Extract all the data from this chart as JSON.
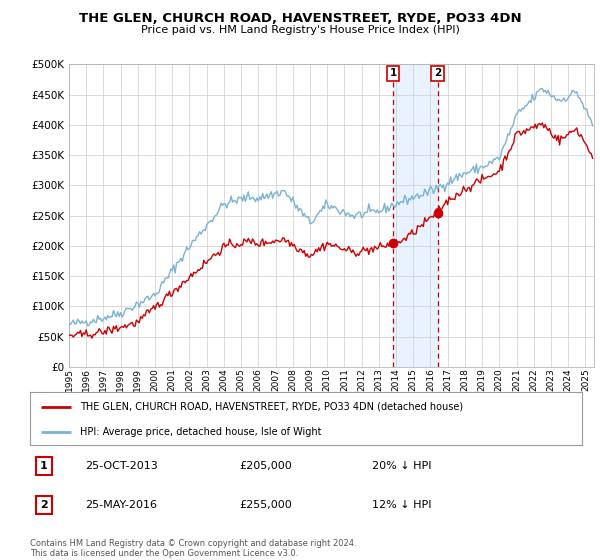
{
  "title": "THE GLEN, CHURCH ROAD, HAVENSTREET, RYDE, PO33 4DN",
  "subtitle": "Price paid vs. HM Land Registry's House Price Index (HPI)",
  "ytick_values": [
    0,
    50000,
    100000,
    150000,
    200000,
    250000,
    300000,
    350000,
    400000,
    450000,
    500000
  ],
  "xlim_start": 1995.0,
  "xlim_end": 2025.5,
  "ylim": [
    0,
    500000
  ],
  "hpi_color": "#7ab3d4",
  "price_color": "#cc0000",
  "marker1_x": 2013.82,
  "marker1_y": 205000,
  "marker2_x": 2016.42,
  "marker2_y": 255000,
  "marker1_date": "25-OCT-2013",
  "marker1_price": "£205,000",
  "marker1_hpi": "20% ↓ HPI",
  "marker2_date": "25-MAY-2016",
  "marker2_price": "£255,000",
  "marker2_hpi": "12% ↓ HPI",
  "legend_label1": "THE GLEN, CHURCH ROAD, HAVENSTREET, RYDE, PO33 4DN (detached house)",
  "legend_label2": "HPI: Average price, detached house, Isle of Wight",
  "footnote": "Contains HM Land Registry data © Crown copyright and database right 2024.\nThis data is licensed under the Open Government Licence v3.0.",
  "background_color": "#ffffff",
  "grid_color": "#cccccc",
  "shade_color": "#ddeeff"
}
